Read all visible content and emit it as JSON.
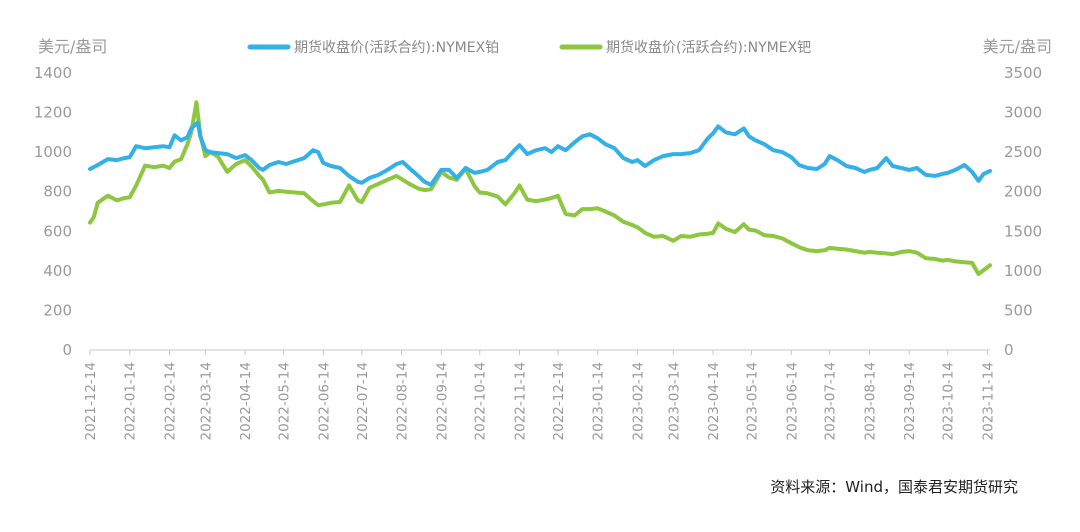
{
  "source_note": "资料来源：Wind，国泰君安期货研究",
  "chart_data": {
    "type": "line",
    "left_axis": {
      "unit": "美元/盎司",
      "min": 0,
      "max": 1400,
      "ticks": [
        "0",
        "200",
        "400",
        "600",
        "800",
        "1000",
        "1200",
        "1400"
      ]
    },
    "right_axis": {
      "unit": "美元/盎司",
      "min": 0,
      "max": 3500,
      "ticks": [
        "0",
        "500",
        "1000",
        "1500",
        "2000",
        "2500",
        "3000",
        "3500"
      ]
    },
    "x_tick_labels": [
      "2021-12-14",
      "2022-01-14",
      "2022-02-14",
      "2022-03-14",
      "2022-04-14",
      "2022-05-14",
      "2022-06-14",
      "2022-07-14",
      "2022-08-14",
      "2022-09-14",
      "2022-10-14",
      "2022-11-14",
      "2022-12-14",
      "2023-01-14",
      "2023-02-14",
      "2023-03-14",
      "2023-04-14",
      "2023-05-14",
      "2023-06-14",
      "2023-07-14",
      "2023-08-14",
      "2023-09-14",
      "2023-10-14",
      "2023-11-14"
    ],
    "colors": {
      "platinum": "#33b0e8",
      "palladium": "#8dc63f"
    },
    "series": [
      {
        "name": "期货收盘价(活跃合约):NYMEX铂",
        "axis": "left",
        "color": "#33b0e8",
        "points": [
          [
            "2021-12-14",
            915
          ],
          [
            "2021-12-20",
            935
          ],
          [
            "2021-12-28",
            965
          ],
          [
            "2022-01-04",
            960
          ],
          [
            "2022-01-10",
            970
          ],
          [
            "2022-01-14",
            975
          ],
          [
            "2022-01-19",
            1030
          ],
          [
            "2022-01-26",
            1020
          ],
          [
            "2022-02-02",
            1025
          ],
          [
            "2022-02-09",
            1030
          ],
          [
            "2022-02-14",
            1025
          ],
          [
            "2022-02-18",
            1085
          ],
          [
            "2022-02-23",
            1060
          ],
          [
            "2022-02-28",
            1075
          ],
          [
            "2022-03-03",
            1120
          ],
          [
            "2022-03-08",
            1150
          ],
          [
            "2022-03-10",
            1080
          ],
          [
            "2022-03-14",
            1010
          ],
          [
            "2022-03-18",
            1000
          ],
          [
            "2022-03-24",
            995
          ],
          [
            "2022-03-31",
            990
          ],
          [
            "2022-04-07",
            970
          ],
          [
            "2022-04-14",
            985
          ],
          [
            "2022-04-19",
            960
          ],
          [
            "2022-04-25",
            920
          ],
          [
            "2022-04-28",
            910
          ],
          [
            "2022-05-03",
            935
          ],
          [
            "2022-05-10",
            950
          ],
          [
            "2022-05-16",
            940
          ],
          [
            "2022-05-23",
            955
          ],
          [
            "2022-05-30",
            970
          ],
          [
            "2022-06-06",
            1010
          ],
          [
            "2022-06-10",
            1000
          ],
          [
            "2022-06-14",
            945
          ],
          [
            "2022-06-20",
            930
          ],
          [
            "2022-06-27",
            920
          ],
          [
            "2022-07-04",
            880
          ],
          [
            "2022-07-11",
            850
          ],
          [
            "2022-07-14",
            845
          ],
          [
            "2022-07-20",
            870
          ],
          [
            "2022-07-27",
            885
          ],
          [
            "2022-08-03",
            910
          ],
          [
            "2022-08-10",
            940
          ],
          [
            "2022-08-15",
            950
          ],
          [
            "2022-08-20",
            920
          ],
          [
            "2022-08-27",
            880
          ],
          [
            "2022-09-01",
            850
          ],
          [
            "2022-09-06",
            835
          ],
          [
            "2022-09-14",
            910
          ],
          [
            "2022-09-20",
            910
          ],
          [
            "2022-09-26",
            870
          ],
          [
            "2022-10-03",
            920
          ],
          [
            "2022-10-10",
            895
          ],
          [
            "2022-10-14",
            900
          ],
          [
            "2022-10-20",
            910
          ],
          [
            "2022-10-28",
            950
          ],
          [
            "2022-11-03",
            960
          ],
          [
            "2022-11-10",
            1010
          ],
          [
            "2022-11-14",
            1035
          ],
          [
            "2022-11-20",
            990
          ],
          [
            "2022-11-27",
            1010
          ],
          [
            "2022-12-04",
            1020
          ],
          [
            "2022-12-09",
            1000
          ],
          [
            "2022-12-14",
            1030
          ],
          [
            "2022-12-20",
            1010
          ],
          [
            "2022-12-27",
            1050
          ],
          [
            "2023-01-02",
            1080
          ],
          [
            "2023-01-08",
            1090
          ],
          [
            "2023-01-14",
            1070
          ],
          [
            "2023-01-20",
            1040
          ],
          [
            "2023-01-27",
            1020
          ],
          [
            "2023-02-03",
            970
          ],
          [
            "2023-02-10",
            950
          ],
          [
            "2023-02-14",
            960
          ],
          [
            "2023-02-20",
            930
          ],
          [
            "2023-02-27",
            960
          ],
          [
            "2023-03-06",
            980
          ],
          [
            "2023-03-14",
            990
          ],
          [
            "2023-03-20",
            990
          ],
          [
            "2023-03-27",
            995
          ],
          [
            "2023-04-03",
            1010
          ],
          [
            "2023-04-10",
            1070
          ],
          [
            "2023-04-14",
            1095
          ],
          [
            "2023-04-18",
            1130
          ],
          [
            "2023-04-24",
            1100
          ],
          [
            "2023-05-01",
            1090
          ],
          [
            "2023-05-08",
            1120
          ],
          [
            "2023-05-12",
            1080
          ],
          [
            "2023-05-17",
            1060
          ],
          [
            "2023-05-24",
            1040
          ],
          [
            "2023-05-31",
            1010
          ],
          [
            "2023-06-07",
            1000
          ],
          [
            "2023-06-14",
            975
          ],
          [
            "2023-06-20",
            935
          ],
          [
            "2023-06-27",
            920
          ],
          [
            "2023-07-04",
            915
          ],
          [
            "2023-07-10",
            940
          ],
          [
            "2023-07-14",
            980
          ],
          [
            "2023-07-20",
            960
          ],
          [
            "2023-07-27",
            930
          ],
          [
            "2023-08-03",
            920
          ],
          [
            "2023-08-10",
            900
          ],
          [
            "2023-08-14",
            910
          ],
          [
            "2023-08-20",
            920
          ],
          [
            "2023-08-27",
            970
          ],
          [
            "2023-09-01",
            930
          ],
          [
            "2023-09-08",
            920
          ],
          [
            "2023-09-14",
            910
          ],
          [
            "2023-09-20",
            920
          ],
          [
            "2023-09-27",
            885
          ],
          [
            "2023-10-04",
            880
          ],
          [
            "2023-10-10",
            890
          ],
          [
            "2023-10-14",
            895
          ],
          [
            "2023-10-20",
            910
          ],
          [
            "2023-10-27",
            935
          ],
          [
            "2023-11-02",
            900
          ],
          [
            "2023-11-07",
            855
          ],
          [
            "2023-11-11",
            890
          ],
          [
            "2023-11-16",
            905
          ]
        ]
      },
      {
        "name": "期货收盘价(活跃合约):NYMEX钯",
        "axis": "right",
        "color": "#8dc63f",
        "points": [
          [
            "2021-12-14",
            1610
          ],
          [
            "2021-12-17",
            1680
          ],
          [
            "2021-12-20",
            1860
          ],
          [
            "2021-12-28",
            1950
          ],
          [
            "2022-01-04",
            1890
          ],
          [
            "2022-01-10",
            1920
          ],
          [
            "2022-01-14",
            1930
          ],
          [
            "2022-01-19",
            2080
          ],
          [
            "2022-01-26",
            2330
          ],
          [
            "2022-02-02",
            2310
          ],
          [
            "2022-02-09",
            2330
          ],
          [
            "2022-02-14",
            2300
          ],
          [
            "2022-02-18",
            2380
          ],
          [
            "2022-02-23",
            2410
          ],
          [
            "2022-02-28",
            2600
          ],
          [
            "2022-03-03",
            2750
          ],
          [
            "2022-03-07",
            3130
          ],
          [
            "2022-03-10",
            2720
          ],
          [
            "2022-03-14",
            2450
          ],
          [
            "2022-03-18",
            2500
          ],
          [
            "2022-03-24",
            2440
          ],
          [
            "2022-03-31",
            2250
          ],
          [
            "2022-04-07",
            2350
          ],
          [
            "2022-04-14",
            2400
          ],
          [
            "2022-04-19",
            2320
          ],
          [
            "2022-04-25",
            2200
          ],
          [
            "2022-04-28",
            2150
          ],
          [
            "2022-05-03",
            1990
          ],
          [
            "2022-05-10",
            2010
          ],
          [
            "2022-05-16",
            2000
          ],
          [
            "2022-05-23",
            1990
          ],
          [
            "2022-05-30",
            1980
          ],
          [
            "2022-06-06",
            1880
          ],
          [
            "2022-06-10",
            1830
          ],
          [
            "2022-06-14",
            1840
          ],
          [
            "2022-06-20",
            1860
          ],
          [
            "2022-06-27",
            1870
          ],
          [
            "2022-07-04",
            2080
          ],
          [
            "2022-07-11",
            1890
          ],
          [
            "2022-07-14",
            1870
          ],
          [
            "2022-07-20",
            2050
          ],
          [
            "2022-07-27",
            2100
          ],
          [
            "2022-08-03",
            2150
          ],
          [
            "2022-08-10",
            2200
          ],
          [
            "2022-08-15",
            2150
          ],
          [
            "2022-08-20",
            2100
          ],
          [
            "2022-08-27",
            2040
          ],
          [
            "2022-09-01",
            2020
          ],
          [
            "2022-09-06",
            2030
          ],
          [
            "2022-09-14",
            2250
          ],
          [
            "2022-09-20",
            2180
          ],
          [
            "2022-09-26",
            2150
          ],
          [
            "2022-10-03",
            2290
          ],
          [
            "2022-10-10",
            2070
          ],
          [
            "2022-10-14",
            1990
          ],
          [
            "2022-10-20",
            1980
          ],
          [
            "2022-10-28",
            1940
          ],
          [
            "2022-11-03",
            1840
          ],
          [
            "2022-11-10",
            1980
          ],
          [
            "2022-11-14",
            2080
          ],
          [
            "2022-11-20",
            1900
          ],
          [
            "2022-11-27",
            1880
          ],
          [
            "2022-12-04",
            1900
          ],
          [
            "2022-12-09",
            1920
          ],
          [
            "2022-12-14",
            1950
          ],
          [
            "2022-12-20",
            1720
          ],
          [
            "2022-12-27",
            1700
          ],
          [
            "2023-01-02",
            1780
          ],
          [
            "2023-01-08",
            1780
          ],
          [
            "2023-01-14",
            1790
          ],
          [
            "2023-01-20",
            1750
          ],
          [
            "2023-01-27",
            1700
          ],
          [
            "2023-02-03",
            1620
          ],
          [
            "2023-02-10",
            1580
          ],
          [
            "2023-02-14",
            1550
          ],
          [
            "2023-02-20",
            1480
          ],
          [
            "2023-02-27",
            1430
          ],
          [
            "2023-03-06",
            1440
          ],
          [
            "2023-03-14",
            1380
          ],
          [
            "2023-03-20",
            1440
          ],
          [
            "2023-03-27",
            1430
          ],
          [
            "2023-04-03",
            1460
          ],
          [
            "2023-04-10",
            1470
          ],
          [
            "2023-04-14",
            1480
          ],
          [
            "2023-04-18",
            1600
          ],
          [
            "2023-04-24",
            1530
          ],
          [
            "2023-05-01",
            1490
          ],
          [
            "2023-05-08",
            1590
          ],
          [
            "2023-05-12",
            1520
          ],
          [
            "2023-05-17",
            1510
          ],
          [
            "2023-05-24",
            1450
          ],
          [
            "2023-05-31",
            1440
          ],
          [
            "2023-06-07",
            1410
          ],
          [
            "2023-06-14",
            1350
          ],
          [
            "2023-06-20",
            1300
          ],
          [
            "2023-06-27",
            1260
          ],
          [
            "2023-07-04",
            1250
          ],
          [
            "2023-07-10",
            1260
          ],
          [
            "2023-07-14",
            1290
          ],
          [
            "2023-07-20",
            1280
          ],
          [
            "2023-07-27",
            1270
          ],
          [
            "2023-08-03",
            1250
          ],
          [
            "2023-08-10",
            1230
          ],
          [
            "2023-08-14",
            1240
          ],
          [
            "2023-08-20",
            1230
          ],
          [
            "2023-08-27",
            1220
          ],
          [
            "2023-09-01",
            1210
          ],
          [
            "2023-09-08",
            1240
          ],
          [
            "2023-09-14",
            1250
          ],
          [
            "2023-09-20",
            1230
          ],
          [
            "2023-09-27",
            1160
          ],
          [
            "2023-10-04",
            1150
          ],
          [
            "2023-10-10",
            1130
          ],
          [
            "2023-10-14",
            1140
          ],
          [
            "2023-10-20",
            1120
          ],
          [
            "2023-10-27",
            1110
          ],
          [
            "2023-11-02",
            1100
          ],
          [
            "2023-11-07",
            960
          ],
          [
            "2023-11-11",
            1010
          ],
          [
            "2023-11-16",
            1070
          ]
        ]
      }
    ],
    "grid": false,
    "legend": "top"
  }
}
